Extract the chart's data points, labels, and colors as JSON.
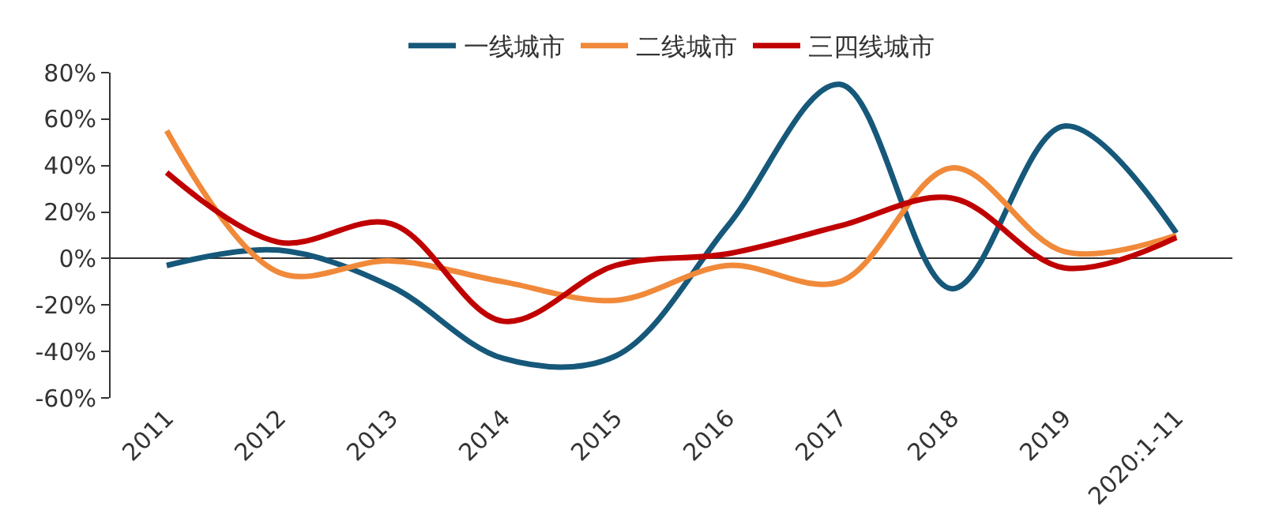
{
  "chart_data": {
    "type": "line",
    "categories": [
      "2011",
      "2012",
      "2013",
      "2014",
      "2015",
      "2016",
      "2017",
      "2018",
      "2019",
      "2020:1-11"
    ],
    "series": [
      {
        "name": "一线城市",
        "color": "#16587a",
        "values": [
          -3,
          3.6,
          -12,
          -43,
          -42,
          14,
          75,
          -13,
          57,
          11
        ]
      },
      {
        "name": "二线城市",
        "color": "#f08a3a",
        "values": [
          55,
          -6,
          -1,
          -10,
          -18,
          -3,
          -10,
          39,
          3,
          10
        ]
      },
      {
        "name": "三四线城市",
        "color": "#c00000",
        "values": [
          37,
          7,
          15,
          -27,
          -3,
          2,
          14,
          26,
          -4,
          9
        ]
      }
    ],
    "ylim": [
      -60,
      80
    ],
    "yticks": [
      {
        "value": -60,
        "label": "-60%"
      },
      {
        "value": -40,
        "label": "-40%"
      },
      {
        "value": -20,
        "label": "-20%"
      },
      {
        "value": 0,
        "label": "0%"
      },
      {
        "value": 20,
        "label": "20%"
      },
      {
        "value": 40,
        "label": "40%"
      },
      {
        "value": 60,
        "label": "60%"
      },
      {
        "value": 80,
        "label": "80%"
      }
    ],
    "legend": "top",
    "marker": "none",
    "line_style": "solid"
  }
}
